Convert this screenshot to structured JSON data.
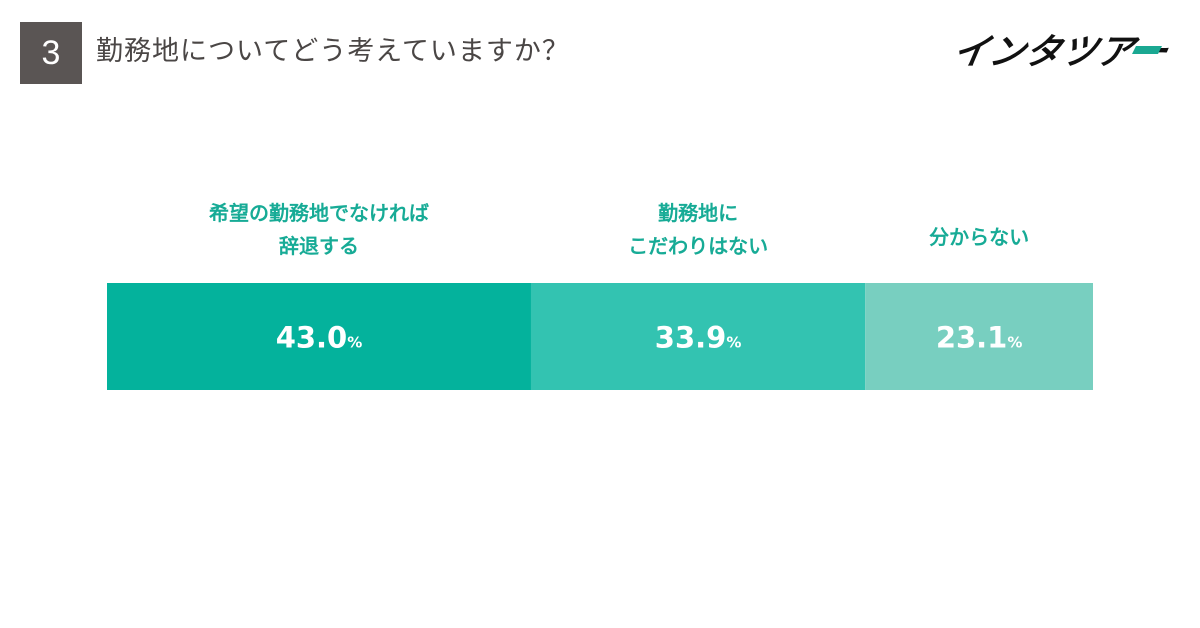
{
  "header": {
    "question_number": "3",
    "question_text": "勤務地についてどう考えていますか？"
  },
  "logo": {
    "text": "インタツアー",
    "colors": {
      "text": "#111111",
      "accent": "#1aa892"
    }
  },
  "chart_data": {
    "type": "bar",
    "orientation": "horizontal-stacked-100",
    "categories": [
      [
        "希望の勤務地でなければ",
        "辞退する"
      ],
      [
        "勤務地に",
        "こだわりはない"
      ],
      [
        "分からない"
      ]
    ],
    "values": [
      43.0,
      33.9,
      23.1
    ],
    "value_labels": [
      "43.0",
      "33.9",
      "23.1"
    ],
    "unit": "%",
    "colors": [
      "#04b29c",
      "#33c3b1",
      "#78cfc0"
    ],
    "label_color": "#17ab96",
    "title": "",
    "xlabel": "",
    "ylabel": "",
    "grid": false
  }
}
